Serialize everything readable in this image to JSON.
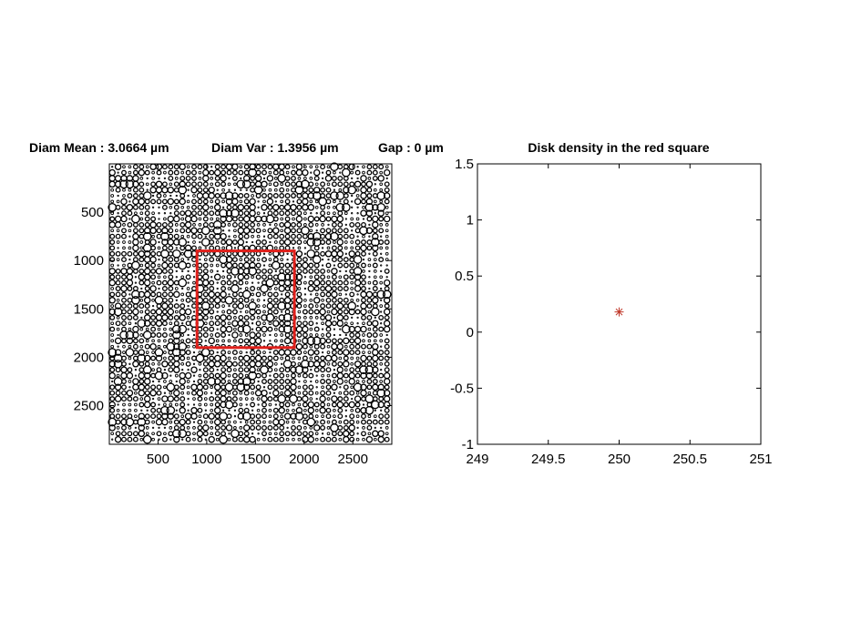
{
  "chart_data": [
    {
      "type": "scatter",
      "title": "Diam Mean : 3.0664 µm    Diam Var : 1.3956 µm    Gap : 0 µm",
      "title_parts": [
        "Diam Mean : 3.0664 µm",
        "Diam Var : 1.3956 µm",
        "Gap : 0 µm"
      ],
      "description_marks": "circular disks of varying diameter on a regular grid (image-style axes)",
      "xlim": [
        0,
        2900
      ],
      "ylim": [
        2900,
        0
      ],
      "y_reversed": true,
      "xticks": [
        500,
        1000,
        1500,
        2000,
        2500
      ],
      "xtick_labels": [
        "500",
        "1000",
        "1500",
        "2000",
        "2500"
      ],
      "yticks": [
        500,
        1000,
        1500,
        2000,
        2500
      ],
      "ytick_labels": [
        "500",
        "1000",
        "1500",
        "2000",
        "2500"
      ],
      "grid_pitch": 60,
      "highlight_square": {
        "x": [
          900,
          1900
        ],
        "y": [
          900,
          1900
        ],
        "color": "#e0201b"
      },
      "grid": false
    },
    {
      "type": "scatter",
      "title": "Disk density in the red square",
      "xlim": [
        249,
        251
      ],
      "ylim": [
        -1,
        1.5
      ],
      "xticks": [
        249,
        249.5,
        250,
        250.5,
        251
      ],
      "xtick_labels": [
        "249",
        "249.5",
        "250",
        "250.5",
        "251"
      ],
      "yticks": [
        -1,
        -0.5,
        0,
        0.5,
        1,
        1.5
      ],
      "ytick_labels": [
        "-1",
        "-0.5",
        "0",
        "0.5",
        "1",
        "1.5"
      ],
      "points": [
        {
          "x": 250,
          "y": 0.18
        }
      ],
      "marker": "*",
      "marker_color": "#c0392b",
      "grid": false
    }
  ]
}
